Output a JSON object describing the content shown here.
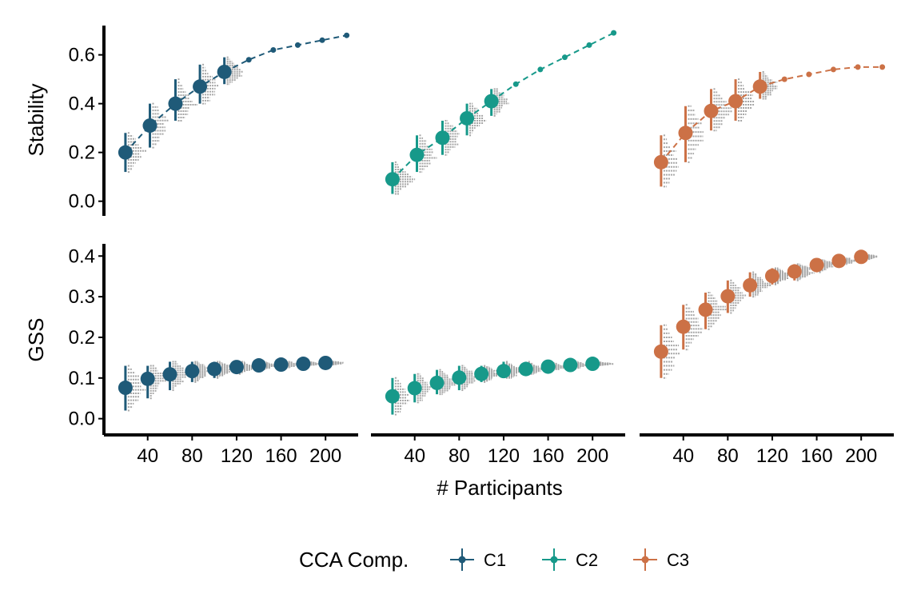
{
  "chart_data": {
    "type": "scatter",
    "xlabel": "# Participants",
    "x_ticks": [
      40,
      80,
      120,
      160,
      200
    ],
    "x_tick_labels": [
      "40",
      "80",
      "120",
      "160",
      "200"
    ],
    "xlim": [
      10,
      220
    ],
    "legend": {
      "title": "CCA Comp.",
      "position": "bottom",
      "entries": [
        "C1",
        "C2",
        "C3"
      ]
    },
    "colors": {
      "C1": "#1f5a78",
      "C2": "#17998a",
      "C3": "#cc7146",
      "samples": "#a6a6a6"
    },
    "grid": false,
    "rows": [
      {
        "ylabel": "Stability",
        "ylim": [
          -0.06,
          0.72
        ],
        "y_ticks": [
          0.0,
          0.2,
          0.4,
          0.6
        ],
        "y_tick_labels": [
          "0.0",
          "0.2",
          "0.4",
          "0.6"
        ],
        "panels": [
          {
            "series": "C1",
            "x_points": [
              20,
              42,
              65,
              87,
              109
            ],
            "x_extrap": [
              109,
              131,
              153,
              175,
              197,
              219
            ],
            "points": [
              {
                "x": 20,
                "y": 0.2,
                "lo": 0.12,
                "hi": 0.28
              },
              {
                "x": 42,
                "y": 0.31,
                "lo": 0.22,
                "hi": 0.4
              },
              {
                "x": 65,
                "y": 0.4,
                "lo": 0.33,
                "hi": 0.5
              },
              {
                "x": 87,
                "y": 0.47,
                "lo": 0.4,
                "hi": 0.56
              },
              {
                "x": 109,
                "y": 0.53,
                "lo": 0.48,
                "hi": 0.59
              }
            ],
            "extrap_y": [
              0.53,
              0.58,
              0.62,
              0.64,
              0.66,
              0.68
            ]
          },
          {
            "series": "C2",
            "points": [
              {
                "x": 20,
                "y": 0.09,
                "lo": 0.03,
                "hi": 0.16
              },
              {
                "x": 42,
                "y": 0.19,
                "lo": 0.12,
                "hi": 0.27
              },
              {
                "x": 65,
                "y": 0.26,
                "lo": 0.19,
                "hi": 0.33
              },
              {
                "x": 87,
                "y": 0.34,
                "lo": 0.27,
                "hi": 0.4
              },
              {
                "x": 109,
                "y": 0.41,
                "lo": 0.35,
                "hi": 0.46
              }
            ],
            "x_extrap": [
              109,
              131,
              153,
              175,
              197,
              219
            ],
            "extrap_y": [
              0.41,
              0.48,
              0.54,
              0.59,
              0.64,
              0.69
            ]
          },
          {
            "series": "C3",
            "points": [
              {
                "x": 20,
                "y": 0.16,
                "lo": 0.06,
                "hi": 0.27
              },
              {
                "x": 42,
                "y": 0.28,
                "lo": 0.16,
                "hi": 0.39
              },
              {
                "x": 65,
                "y": 0.37,
                "lo": 0.29,
                "hi": 0.46
              },
              {
                "x": 87,
                "y": 0.41,
                "lo": 0.33,
                "hi": 0.5
              },
              {
                "x": 109,
                "y": 0.47,
                "lo": 0.42,
                "hi": 0.53
              }
            ],
            "x_extrap": [
              109,
              131,
              153,
              175,
              197,
              219
            ],
            "extrap_y": [
              0.47,
              0.5,
              0.52,
              0.54,
              0.55,
              0.55
            ]
          }
        ]
      },
      {
        "ylabel": "GSS",
        "ylim": [
          -0.04,
          0.43
        ],
        "y_ticks": [
          0.0,
          0.1,
          0.2,
          0.3,
          0.4
        ],
        "y_tick_labels": [
          "0.0",
          "0.1",
          "0.2",
          "0.3",
          "0.4"
        ],
        "panels": [
          {
            "series": "C1",
            "points": [
              {
                "x": 20,
                "y": 0.076,
                "lo": 0.02,
                "hi": 0.13
              },
              {
                "x": 40,
                "y": 0.098,
                "lo": 0.05,
                "hi": 0.13
              },
              {
                "x": 60,
                "y": 0.109,
                "lo": 0.07,
                "hi": 0.14
              },
              {
                "x": 80,
                "y": 0.117,
                "lo": 0.09,
                "hi": 0.14
              },
              {
                "x": 100,
                "y": 0.122,
                "lo": 0.1,
                "hi": 0.14
              },
              {
                "x": 120,
                "y": 0.127,
                "lo": 0.11,
                "hi": 0.14
              },
              {
                "x": 140,
                "y": 0.131,
                "lo": 0.12,
                "hi": 0.14
              },
              {
                "x": 160,
                "y": 0.133,
                "lo": 0.12,
                "hi": 0.14
              },
              {
                "x": 180,
                "y": 0.135,
                "lo": 0.13,
                "hi": 0.14
              },
              {
                "x": 200,
                "y": 0.137,
                "lo": 0.13,
                "hi": 0.14
              }
            ]
          },
          {
            "series": "C2",
            "points": [
              {
                "x": 20,
                "y": 0.055,
                "lo": 0.01,
                "hi": 0.1
              },
              {
                "x": 40,
                "y": 0.075,
                "lo": 0.04,
                "hi": 0.11
              },
              {
                "x": 60,
                "y": 0.088,
                "lo": 0.06,
                "hi": 0.12
              },
              {
                "x": 80,
                "y": 0.101,
                "lo": 0.07,
                "hi": 0.13
              },
              {
                "x": 100,
                "y": 0.11,
                "lo": 0.09,
                "hi": 0.13
              },
              {
                "x": 120,
                "y": 0.117,
                "lo": 0.1,
                "hi": 0.14
              },
              {
                "x": 140,
                "y": 0.122,
                "lo": 0.11,
                "hi": 0.14
              },
              {
                "x": 160,
                "y": 0.128,
                "lo": 0.12,
                "hi": 0.14
              },
              {
                "x": 180,
                "y": 0.132,
                "lo": 0.12,
                "hi": 0.14
              },
              {
                "x": 200,
                "y": 0.135,
                "lo": 0.13,
                "hi": 0.14
              }
            ]
          },
          {
            "series": "C3",
            "points": [
              {
                "x": 20,
                "y": 0.165,
                "lo": 0.1,
                "hi": 0.23
              },
              {
                "x": 40,
                "y": 0.226,
                "lo": 0.17,
                "hi": 0.28
              },
              {
                "x": 60,
                "y": 0.268,
                "lo": 0.22,
                "hi": 0.31
              },
              {
                "x": 80,
                "y": 0.301,
                "lo": 0.26,
                "hi": 0.34
              },
              {
                "x": 100,
                "y": 0.328,
                "lo": 0.3,
                "hi": 0.36
              },
              {
                "x": 120,
                "y": 0.351,
                "lo": 0.33,
                "hi": 0.37
              },
              {
                "x": 140,
                "y": 0.362,
                "lo": 0.34,
                "hi": 0.38
              },
              {
                "x": 160,
                "y": 0.378,
                "lo": 0.36,
                "hi": 0.39
              },
              {
                "x": 180,
                "y": 0.388,
                "lo": 0.38,
                "hi": 0.4
              },
              {
                "x": 200,
                "y": 0.398,
                "lo": 0.39,
                "hi": 0.405
              }
            ]
          }
        ]
      }
    ]
  }
}
